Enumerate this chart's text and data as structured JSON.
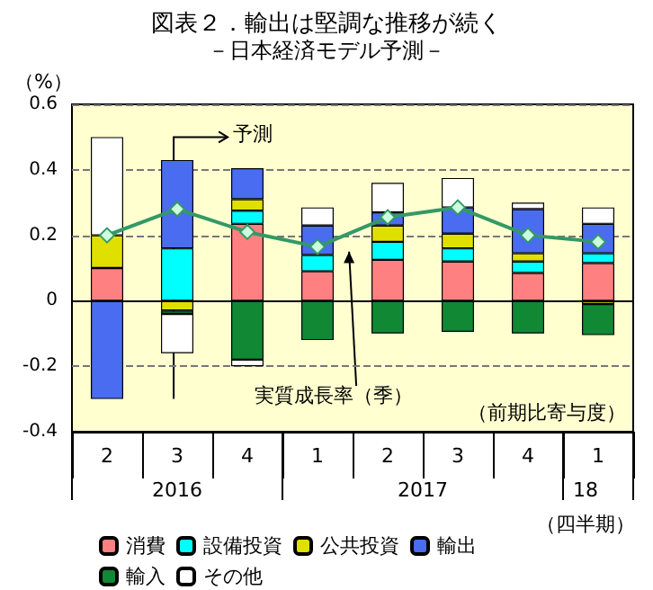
{
  "chart_data": {
    "type": "bar",
    "stacked": true,
    "title": "図表２．輸出は堅調な推移が続く",
    "subtitle": "－日本経済モデル予測－",
    "ylabel": "（%）",
    "categories": [
      "2",
      "3",
      "4",
      "1",
      "2",
      "3",
      "4",
      "1"
    ],
    "series": [
      {
        "name": "消費",
        "color": "#ff8080",
        "values": [
          0.1,
          null,
          0.235,
          0.09,
          0.125,
          0.12,
          0.085,
          0.115
        ]
      },
      {
        "name": "設備投資",
        "color": "#00ffff",
        "values": [
          null,
          0.16,
          0.04,
          0.05,
          0.055,
          0.04,
          0.035,
          0.03
        ]
      },
      {
        "name": "公共投資",
        "color": "#e0e000",
        "values": [
          0.1,
          -0.03,
          0.035,
          null,
          0.05,
          0.045,
          0.025,
          -0.01
        ]
      },
      {
        "name": "輸出",
        "color": "#4a6cf0",
        "values": [
          -0.3,
          0.27,
          0.095,
          0.09,
          0.04,
          0.08,
          0.135,
          0.09
        ]
      },
      {
        "name": "輸入",
        "color": "#118833",
        "values": [
          null,
          -0.01,
          -0.18,
          -0.12,
          -0.1,
          -0.095,
          -0.1,
          -0.095
        ]
      },
      {
        "name": "その他",
        "color": "#ffffff",
        "values": [
          0.3,
          -0.12,
          -0.02,
          0.055,
          0.09,
          0.09,
          0.02,
          0.05
        ]
      },
      {
        "name": "実質成長率（季）",
        "type": "line",
        "color": "#339966",
        "values": [
          0.2,
          0.28,
          0.21,
          0.165,
          0.255,
          0.285,
          0.2,
          0.18
        ]
      }
    ],
    "ylim": [
      -0.4,
      0.6
    ],
    "yticks": [
      -0.4,
      -0.2,
      0,
      0.2,
      0.4,
      0.6
    ],
    "grid": "y",
    "legend": "bottom",
    "marker": "diamond",
    "annotations": [
      "予測",
      "（前期比寄与度）",
      "（四半期）",
      "2016",
      "2017",
      "18"
    ]
  }
}
